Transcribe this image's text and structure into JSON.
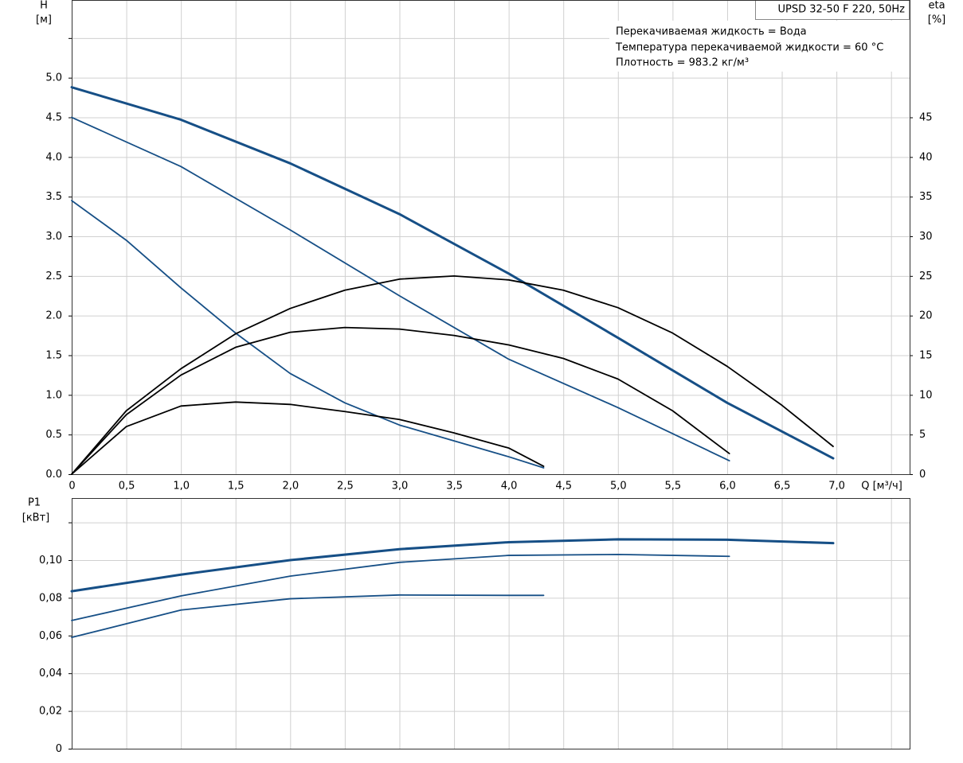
{
  "chart_data": [
    {
      "type": "line",
      "title": "UPSD 32-50 F 220, 50Hz",
      "annotations": [
        "Перекачиваемая жидкость = Вода",
        "Температура перекачиваемой жидкости = 60 °C",
        "Плотность = 983.2 кг/м³"
      ],
      "y_label": "H",
      "y_unit": "[м]",
      "y2_label": "eta",
      "y2_unit": "[%]",
      "x_label": "Q [м³/ч]",
      "xlim": [
        0,
        7.67
      ],
      "ylim": [
        0,
        5.98
      ],
      "y2lim": [
        0,
        59.8
      ],
      "grid": true,
      "xticks": [
        0,
        {
          "value": 0.5,
          "label": "0,5"
        },
        {
          "value": 1,
          "label": "1,0"
        },
        {
          "value": 1.5,
          "label": "1,5"
        },
        {
          "value": 2,
          "label": "2,0"
        },
        {
          "value": 2.5,
          "label": "2,5"
        },
        {
          "value": 3,
          "label": "3,0"
        },
        {
          "value": 3.5,
          "label": "3,5"
        },
        {
          "value": 4,
          "label": "4,0"
        },
        {
          "value": 4.5,
          "label": "4,5"
        },
        {
          "value": 5,
          "label": "5,0"
        },
        {
          "value": 5.5,
          "label": "5,5"
        },
        {
          "value": 6,
          "label": "6,0"
        },
        {
          "value": 6.5,
          "label": "6,5"
        },
        {
          "value": 7,
          "label": "7,0"
        },
        {
          "value": 7.5,
          "label": null
        }
      ],
      "yticks": [
        {
          "value": 0,
          "label": "0.0"
        },
        0.5,
        {
          "value": 1,
          "label": "1.0"
        },
        1.5,
        {
          "value": 2,
          "label": "2.0"
        },
        2.5,
        {
          "value": 3,
          "label": "3.0"
        },
        3.5,
        {
          "value": 4,
          "label": "4.0"
        },
        4.5,
        {
          "value": 5,
          "label": "5.0"
        },
        {
          "value": 5.5,
          "label": null
        }
      ],
      "y2ticks": [
        0,
        5,
        10,
        15,
        20,
        25,
        30,
        35,
        40,
        45
      ],
      "series": [
        {
          "color": "#164f86",
          "x": [
            0,
            1,
            2,
            3,
            4,
            5,
            6,
            6.97
          ],
          "values": [
            4.88,
            4.47,
            3.92,
            3.28,
            2.53,
            1.72,
            0.9,
            0.2
          ]
        },
        {
          "color": "#164f86",
          "x": [
            0,
            1,
            2,
            3,
            4,
            5,
            6.02
          ],
          "values": [
            4.5,
            3.88,
            3.08,
            2.25,
            1.45,
            0.84,
            0.17
          ]
        },
        {
          "color": "#164f86",
          "x": [
            0,
            0.5,
            1,
            1.5,
            2,
            2.5,
            3,
            3.5,
            4,
            4.32
          ],
          "values": [
            3.45,
            2.95,
            2.35,
            1.78,
            1.27,
            0.9,
            0.62,
            0.42,
            0.22,
            0.08
          ]
        },
        {
          "color": "#000000",
          "axis": "y2",
          "x": [
            0,
            0.5,
            1,
            1.5,
            2,
            2.5,
            3,
            3.5,
            4,
            4.5,
            5,
            5.5,
            6,
            6.5,
            6.97
          ],
          "values": [
            0,
            8,
            13.3,
            17.7,
            20.9,
            23.2,
            24.6,
            25,
            24.5,
            23.2,
            21,
            17.8,
            13.6,
            8.7,
            3.5
          ]
        },
        {
          "color": "#000000",
          "axis": "y2",
          "x": [
            0,
            0.5,
            1,
            1.5,
            2,
            2.5,
            3,
            3.5,
            4,
            4.5,
            5,
            5.5,
            6.02
          ],
          "values": [
            0,
            7.5,
            12.5,
            16,
            17.9,
            18.5,
            18.3,
            17.5,
            16.3,
            14.6,
            12,
            8,
            2.6
          ]
        },
        {
          "color": "#000000",
          "axis": "y2",
          "x": [
            0,
            0.5,
            1,
            1.5,
            2,
            2.5,
            3,
            3.5,
            4,
            4.32
          ],
          "values": [
            0,
            6,
            8.6,
            9.1,
            8.8,
            7.9,
            6.9,
            5.2,
            3.3,
            1
          ]
        }
      ]
    },
    {
      "type": "line",
      "y_label": "P1",
      "y_unit": "[кВт]",
      "xlim": [
        0,
        7.67
      ],
      "ylim": [
        0,
        0.1329
      ],
      "grid": true,
      "yticks": [
        0,
        {
          "value": 0.02,
          "label": "0,02"
        },
        {
          "value": 0.04,
          "label": "0,04"
        },
        {
          "value": 0.06,
          "label": "0,06"
        },
        {
          "value": 0.08,
          "label": "0,08"
        },
        {
          "value": 0.1,
          "label": "0,10"
        },
        {
          "value": 0.12,
          "label": null
        }
      ],
      "series": [
        {
          "color": "#164f86",
          "x": [
            0,
            1,
            2,
            3,
            4,
            5,
            6,
            6.97
          ],
          "values": [
            0.0835,
            0.0923,
            0.1,
            0.1058,
            0.1095,
            0.111,
            0.1108,
            0.109
          ]
        },
        {
          "color": "#164f86",
          "x": [
            0,
            1,
            2,
            3,
            4,
            5,
            6.02
          ],
          "values": [
            0.068,
            0.081,
            0.0915,
            0.0988,
            0.1025,
            0.103,
            0.102
          ]
        },
        {
          "color": "#164f86",
          "x": [
            0,
            1,
            2,
            3,
            4,
            4.32
          ],
          "values": [
            0.059,
            0.0735,
            0.0795,
            0.0815,
            0.0813,
            0.0813
          ]
        }
      ]
    }
  ]
}
